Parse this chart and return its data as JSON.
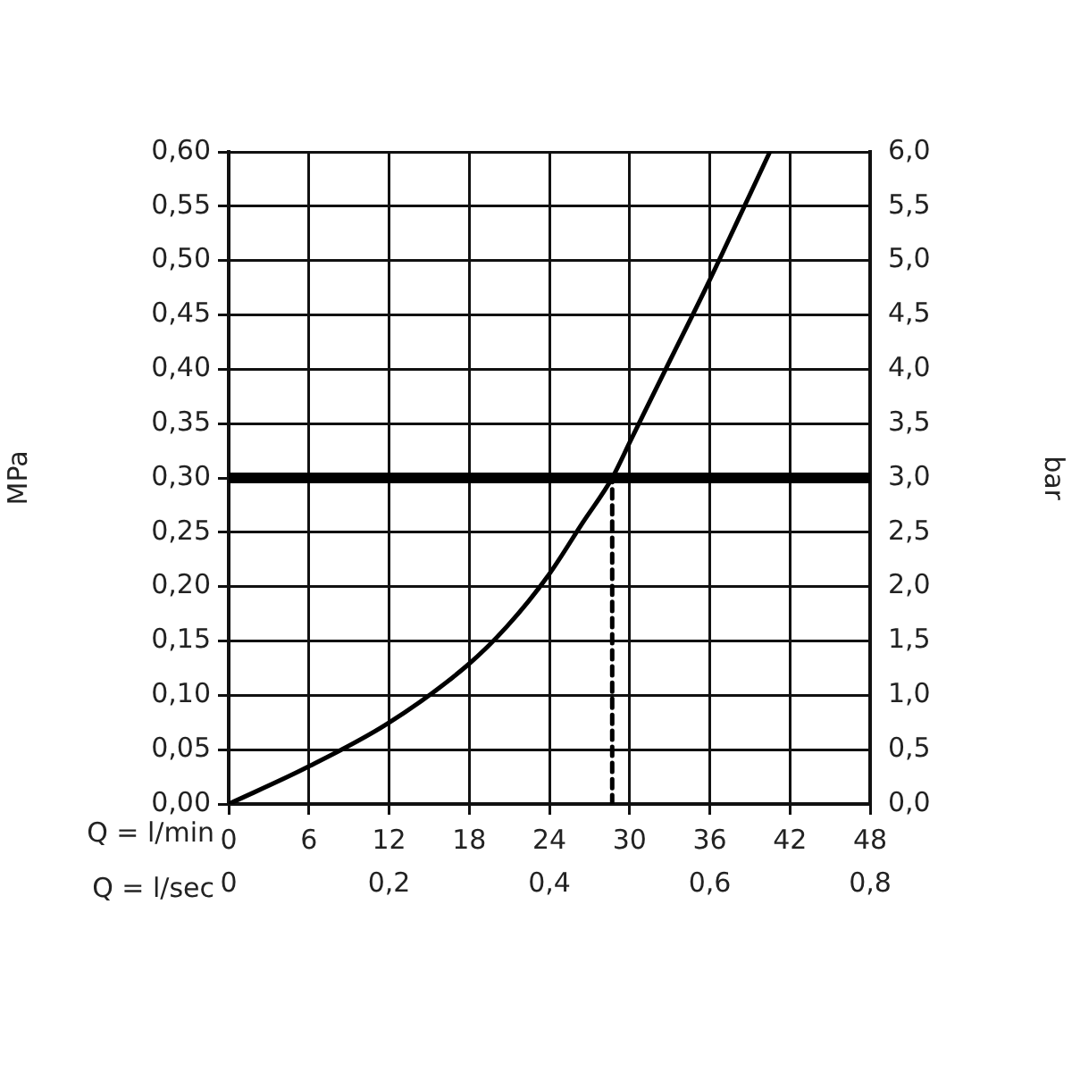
{
  "chart_data": {
    "type": "line",
    "xlabel": "Q = l/min",
    "x2label": "Q = l/sec",
    "ylabel": "MPa",
    "y2label": "bar",
    "xlim": [
      0,
      48
    ],
    "xticks": [
      0,
      6,
      12,
      18,
      24,
      30,
      36,
      42,
      48
    ],
    "x2lim": [
      0,
      0.8
    ],
    "x2ticks": [
      {
        "value": 0,
        "label": "0"
      },
      {
        "value": 0.2,
        "label": "0,2"
      },
      {
        "value": 0.4,
        "label": "0,4"
      },
      {
        "value": 0.6,
        "label": "0,6"
      },
      {
        "value": 0.8,
        "label": "0,8"
      }
    ],
    "ylim": [
      0,
      0.6
    ],
    "yticks": [
      {
        "value": 0,
        "label": "0,00"
      },
      {
        "value": 0.05,
        "label": "0,05"
      },
      {
        "value": 0.1,
        "label": "0,10"
      },
      {
        "value": 0.15,
        "label": "0,15"
      },
      {
        "value": 0.2,
        "label": "0,20"
      },
      {
        "value": 0.25,
        "label": "0,25"
      },
      {
        "value": 0.3,
        "label": "0,30"
      },
      {
        "value": 0.35,
        "label": "0,35"
      },
      {
        "value": 0.4,
        "label": "0,40"
      },
      {
        "value": 0.45,
        "label": "0,45"
      },
      {
        "value": 0.5,
        "label": "0,50"
      },
      {
        "value": 0.55,
        "label": "0,55"
      },
      {
        "value": 0.6,
        "label": "0,60"
      }
    ],
    "y2lim": [
      0,
      6
    ],
    "y2ticks": [
      {
        "value": 0,
        "label": "0,0"
      },
      {
        "value": 0.5,
        "label": "0,5"
      },
      {
        "value": 1,
        "label": "1,0"
      },
      {
        "value": 1.5,
        "label": "1,5"
      },
      {
        "value": 2,
        "label": "2,0"
      },
      {
        "value": 2.5,
        "label": "2,5"
      },
      {
        "value": 3,
        "label": "3,0"
      },
      {
        "value": 3.5,
        "label": "3,5"
      },
      {
        "value": 4,
        "label": "4,0"
      },
      {
        "value": 4.5,
        "label": "4,5"
      },
      {
        "value": 5,
        "label": "5,0"
      },
      {
        "value": 5.5,
        "label": "5,5"
      },
      {
        "value": 6,
        "label": "6,0"
      }
    ],
    "grid": true,
    "legend": false,
    "marker": "none",
    "ref_lines": [
      {
        "axis": "y",
        "value": 0.3,
        "color": "#000000",
        "line_style": "solid"
      }
    ],
    "series": [
      {
        "color": "#000000",
        "x": [
          0,
          5.75,
          11.9,
          17.9,
          20.8,
          23.9,
          26.5,
          28.7,
          30.1,
          32.7,
          35.8,
          38.1,
          40.5
        ],
        "values": [
          0,
          0.033,
          0.074,
          0.128,
          0.163,
          0.21,
          0.259,
          0.3,
          0.335,
          0.4,
          0.477,
          0.537,
          0.6
        ]
      },
      {
        "color": "#000000",
        "line_style": "dashed",
        "x": [
          28.7,
          28.7
        ],
        "values": [
          0,
          0.3
        ]
      }
    ]
  }
}
